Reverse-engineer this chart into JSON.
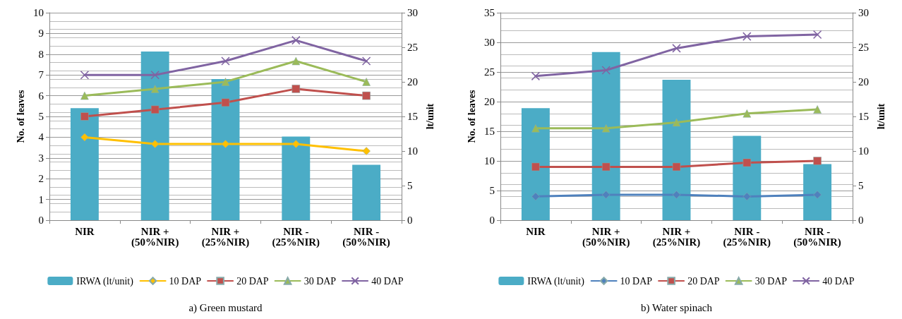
{
  "chart_data": [
    {
      "type": "line",
      "title": "a) Green mustard",
      "ylabel": "No. of leaves",
      "y2label": "lt/unit",
      "categories": [
        "NIR",
        "NIR +\n(50%NIR)",
        "NIR +\n(25%NIR)",
        "NIR -\n(25%NIR)",
        "NIR -\n(50%NIR)"
      ],
      "series": [
        {
          "name": "IRWA (lt/unit)",
          "type": "bar",
          "axis": "y2",
          "color": "#4bacc6",
          "values": [
            16.2,
            24.4,
            20.4,
            12.1,
            8.0
          ]
        },
        {
          "name": "10 DAP",
          "color": "#ffc000",
          "marker": "diamond",
          "values": [
            4,
            3.67,
            3.67,
            3.67,
            3.33
          ]
        },
        {
          "name": "20 DAP",
          "color": "#c0504d",
          "marker": "square",
          "values": [
            5,
            5.33,
            5.67,
            6.33,
            6
          ]
        },
        {
          "name": "30 DAP",
          "color": "#9bbb59",
          "marker": "triangle",
          "values": [
            6,
            6.33,
            6.67,
            7.67,
            6.67
          ]
        },
        {
          "name": "40 DAP",
          "color": "#8064a2",
          "marker": "cross",
          "values": [
            7,
            7,
            7.67,
            8.67,
            7.67
          ]
        }
      ],
      "ylim": [
        0,
        10
      ],
      "yticks": [
        0,
        1,
        2,
        3,
        4,
        5,
        6,
        7,
        8,
        9,
        10
      ],
      "y2lim": [
        0,
        30
      ],
      "y2ticks": [
        0,
        5,
        10,
        15,
        20,
        25,
        30
      ],
      "grid": "y",
      "legend": "bottom"
    },
    {
      "type": "line",
      "title": "b) Water spinach",
      "ylabel": "No. of leaves",
      "y2label": "lt/unit",
      "categories": [
        "NIR",
        "NIR +\n(50%NIR)",
        "NIR +\n(25%NIR)",
        "NIR -\n(25%NIR)",
        "NIR -\n(50%NIR)"
      ],
      "series": [
        {
          "name": "IRWA (lt/unit)",
          "type": "bar",
          "axis": "y2",
          "color": "#4bacc6",
          "values": [
            16.2,
            24.3,
            20.3,
            12.2,
            8.1
          ]
        },
        {
          "name": "10 DAP",
          "color": "#4f81bd",
          "marker": "diamond",
          "values": [
            4,
            4.3,
            4.3,
            4,
            4.3
          ]
        },
        {
          "name": "20 DAP",
          "color": "#c0504d",
          "marker": "square",
          "values": [
            9,
            9,
            9,
            9.7,
            10
          ]
        },
        {
          "name": "30 DAP",
          "color": "#9bbb59",
          "marker": "triangle",
          "values": [
            15.5,
            15.5,
            16.5,
            18,
            18.7
          ]
        },
        {
          "name": "40 DAP",
          "color": "#8064a2",
          "marker": "cross",
          "values": [
            24.3,
            25.3,
            29,
            31,
            31.3
          ]
        }
      ],
      "ylim": [
        0,
        35
      ],
      "yticks": [
        0,
        5,
        10,
        15,
        20,
        25,
        30,
        35
      ],
      "y2lim": [
        0,
        30
      ],
      "y2ticks": [
        0,
        5,
        10,
        15,
        20,
        25,
        30
      ],
      "grid": "y",
      "legend": "bottom"
    }
  ]
}
